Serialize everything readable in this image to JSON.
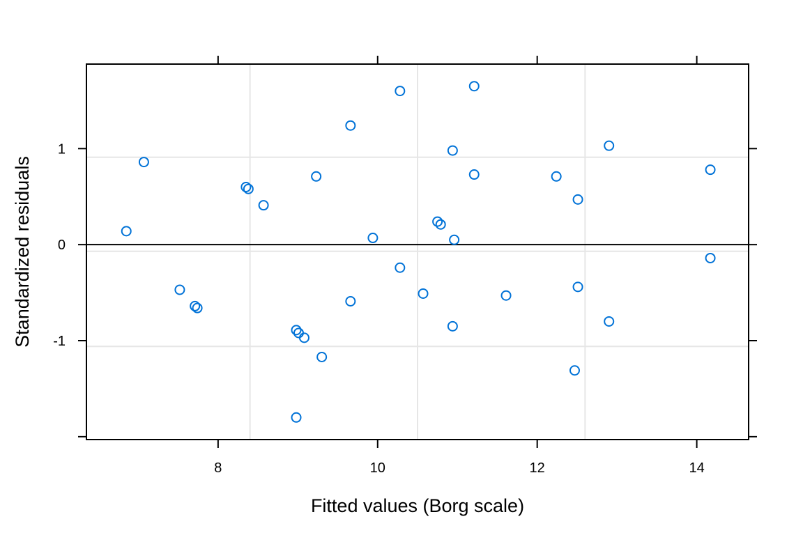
{
  "chart_data": {
    "type": "scatter",
    "title": "",
    "xlabel": "Fitted values (Borg scale)",
    "ylabel": "Standardized residuals",
    "xlim": [
      6.35,
      14.65
    ],
    "ylim": [
      -2.03,
      1.88
    ],
    "x_ticks": [
      8,
      10,
      12,
      14
    ],
    "y_ticks": [
      -2,
      -1,
      0,
      1
    ],
    "y_tick_labels": [
      "",
      "-1",
      "0",
      "1"
    ],
    "grid": true,
    "grid_x": [
      8.4,
      10.5,
      12.6
    ],
    "grid_y": [
      -1.06,
      -0.07,
      0.91
    ],
    "reference_line_y": 0,
    "marker": "open-circle",
    "colors": {
      "points": "#0072D7",
      "grid": "#E6E6E6",
      "axis": "#000000"
    },
    "points": [
      {
        "x": 6.85,
        "y": 0.14
      },
      {
        "x": 7.07,
        "y": 0.86
      },
      {
        "x": 7.52,
        "y": -0.47
      },
      {
        "x": 7.71,
        "y": -0.64
      },
      {
        "x": 7.74,
        "y": -0.66
      },
      {
        "x": 8.35,
        "y": 0.6
      },
      {
        "x": 8.38,
        "y": 0.58
      },
      {
        "x": 8.57,
        "y": 0.41
      },
      {
        "x": 8.98,
        "y": -0.89
      },
      {
        "x": 9.01,
        "y": -0.92
      },
      {
        "x": 9.08,
        "y": -0.97
      },
      {
        "x": 8.98,
        "y": -1.8
      },
      {
        "x": 9.23,
        "y": 0.71
      },
      {
        "x": 9.3,
        "y": -1.17
      },
      {
        "x": 9.66,
        "y": 1.24
      },
      {
        "x": 9.66,
        "y": -0.59
      },
      {
        "x": 9.94,
        "y": 0.07
      },
      {
        "x": 10.28,
        "y": 1.6
      },
      {
        "x": 10.28,
        "y": -0.24
      },
      {
        "x": 10.57,
        "y": -0.51
      },
      {
        "x": 10.75,
        "y": 0.24
      },
      {
        "x": 10.79,
        "y": 0.21
      },
      {
        "x": 10.94,
        "y": 0.98
      },
      {
        "x": 10.96,
        "y": 0.05
      },
      {
        "x": 10.94,
        "y": -0.85
      },
      {
        "x": 11.21,
        "y": 1.65
      },
      {
        "x": 11.21,
        "y": 0.73
      },
      {
        "x": 11.61,
        "y": -0.53
      },
      {
        "x": 12.24,
        "y": 0.71
      },
      {
        "x": 12.47,
        "y": -1.31
      },
      {
        "x": 12.51,
        "y": 0.47
      },
      {
        "x": 12.51,
        "y": -0.44
      },
      {
        "x": 12.9,
        "y": 1.03
      },
      {
        "x": 12.9,
        "y": -0.8
      },
      {
        "x": 14.17,
        "y": 0.78
      },
      {
        "x": 14.17,
        "y": -0.14
      }
    ]
  }
}
